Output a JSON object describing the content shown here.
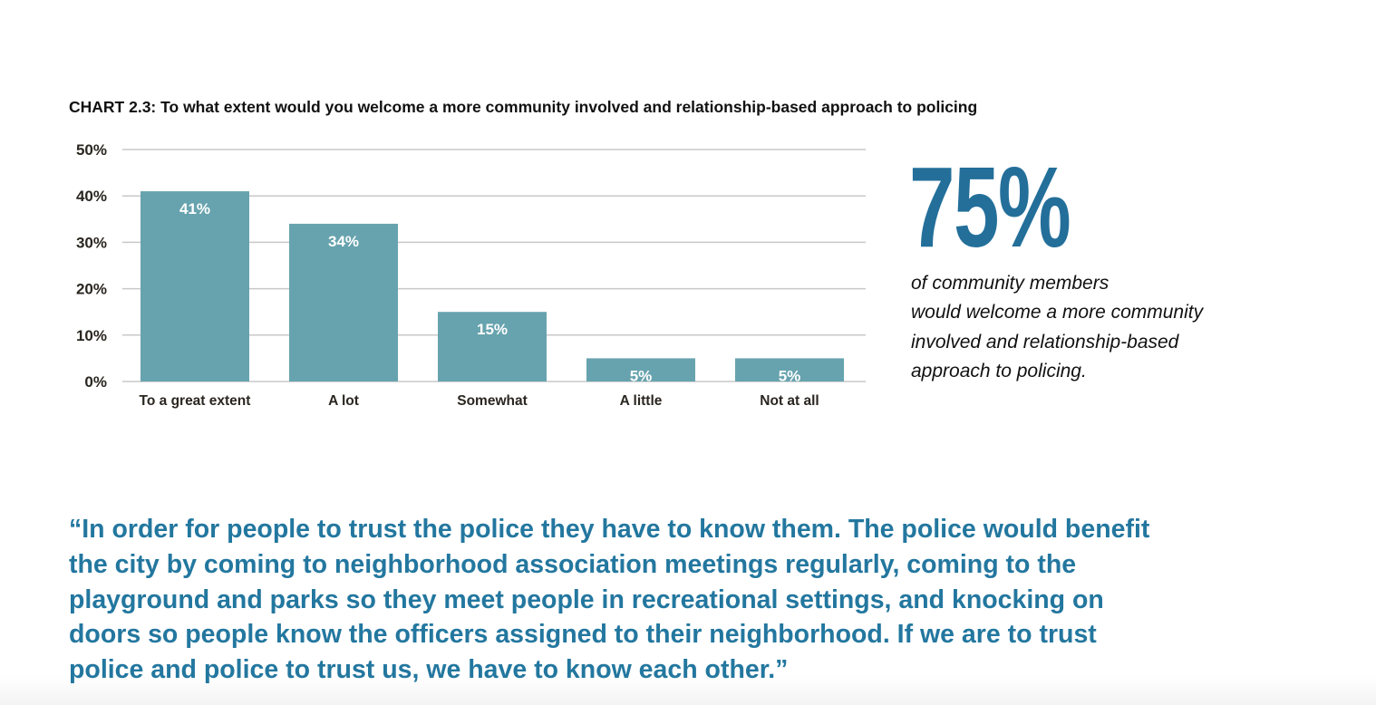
{
  "chart_data": {
    "type": "bar",
    "title": "CHART 2.3: To what extent would you welcome a more community involved and relationship-based approach to policing",
    "categories": [
      "To a great extent",
      "A lot",
      "Somewhat",
      "A little",
      "Not at all"
    ],
    "values": [
      41,
      34,
      15,
      5,
      5
    ],
    "data_labels": [
      "41%",
      "34%",
      "15%",
      "5%",
      "5%"
    ],
    "yticks": [
      "0%",
      "10%",
      "20%",
      "30%",
      "40%",
      "50%"
    ],
    "ylim": [
      0,
      50
    ],
    "grid": true,
    "xlabel": "",
    "ylabel": "",
    "bar_color": "#67a3ae"
  },
  "callout": {
    "figure": "75%",
    "lines": [
      "of community members",
      "would welcome a more community",
      "involved and relationship-based",
      "approach to policing."
    ],
    "color": "#236f9a"
  },
  "quote": {
    "lines": [
      "“In order for people to trust the police they have to know them. The police would benefit",
      "the city by coming to neighborhood association meetings regularly, coming to the",
      "playground and parks so they meet people in recreational settings, and knocking on",
      "doors so people know the officers assigned to their neighborhood. If we are to trust",
      "police and police to trust us, we have to know each other.”"
    ],
    "color": "#23779f"
  }
}
